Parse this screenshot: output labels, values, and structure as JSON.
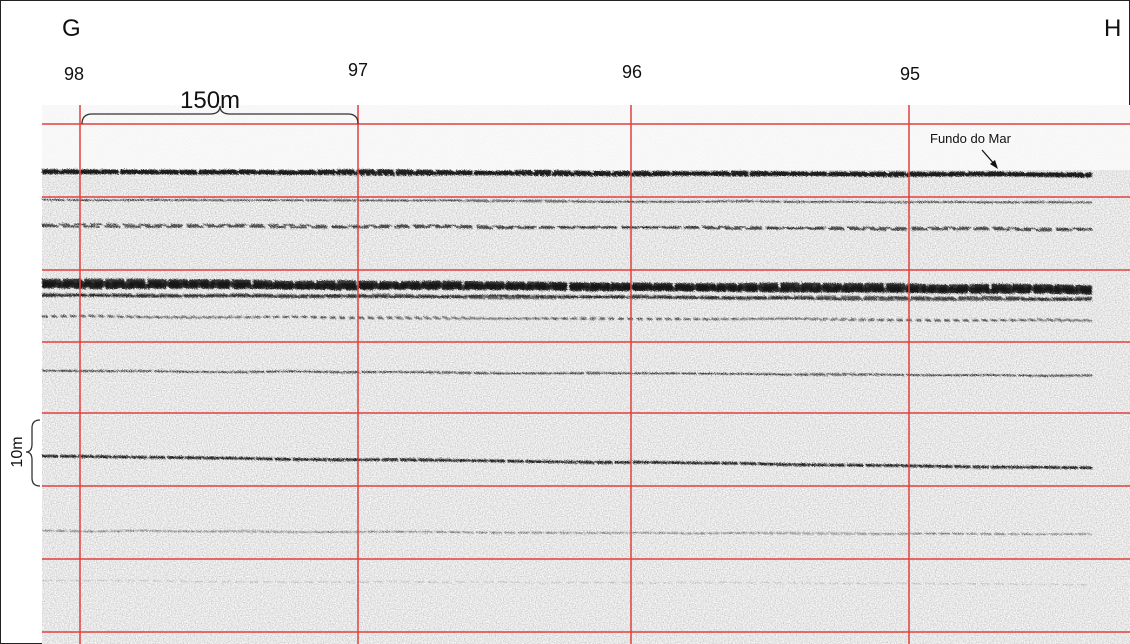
{
  "header": {
    "left": "G",
    "right": "H"
  },
  "stations": [
    "98",
    "97",
    "96",
    "95"
  ],
  "scale_labels": {
    "horizontal": "150m",
    "vertical": "10m"
  },
  "annotation": "Fundo do Mar"
}
